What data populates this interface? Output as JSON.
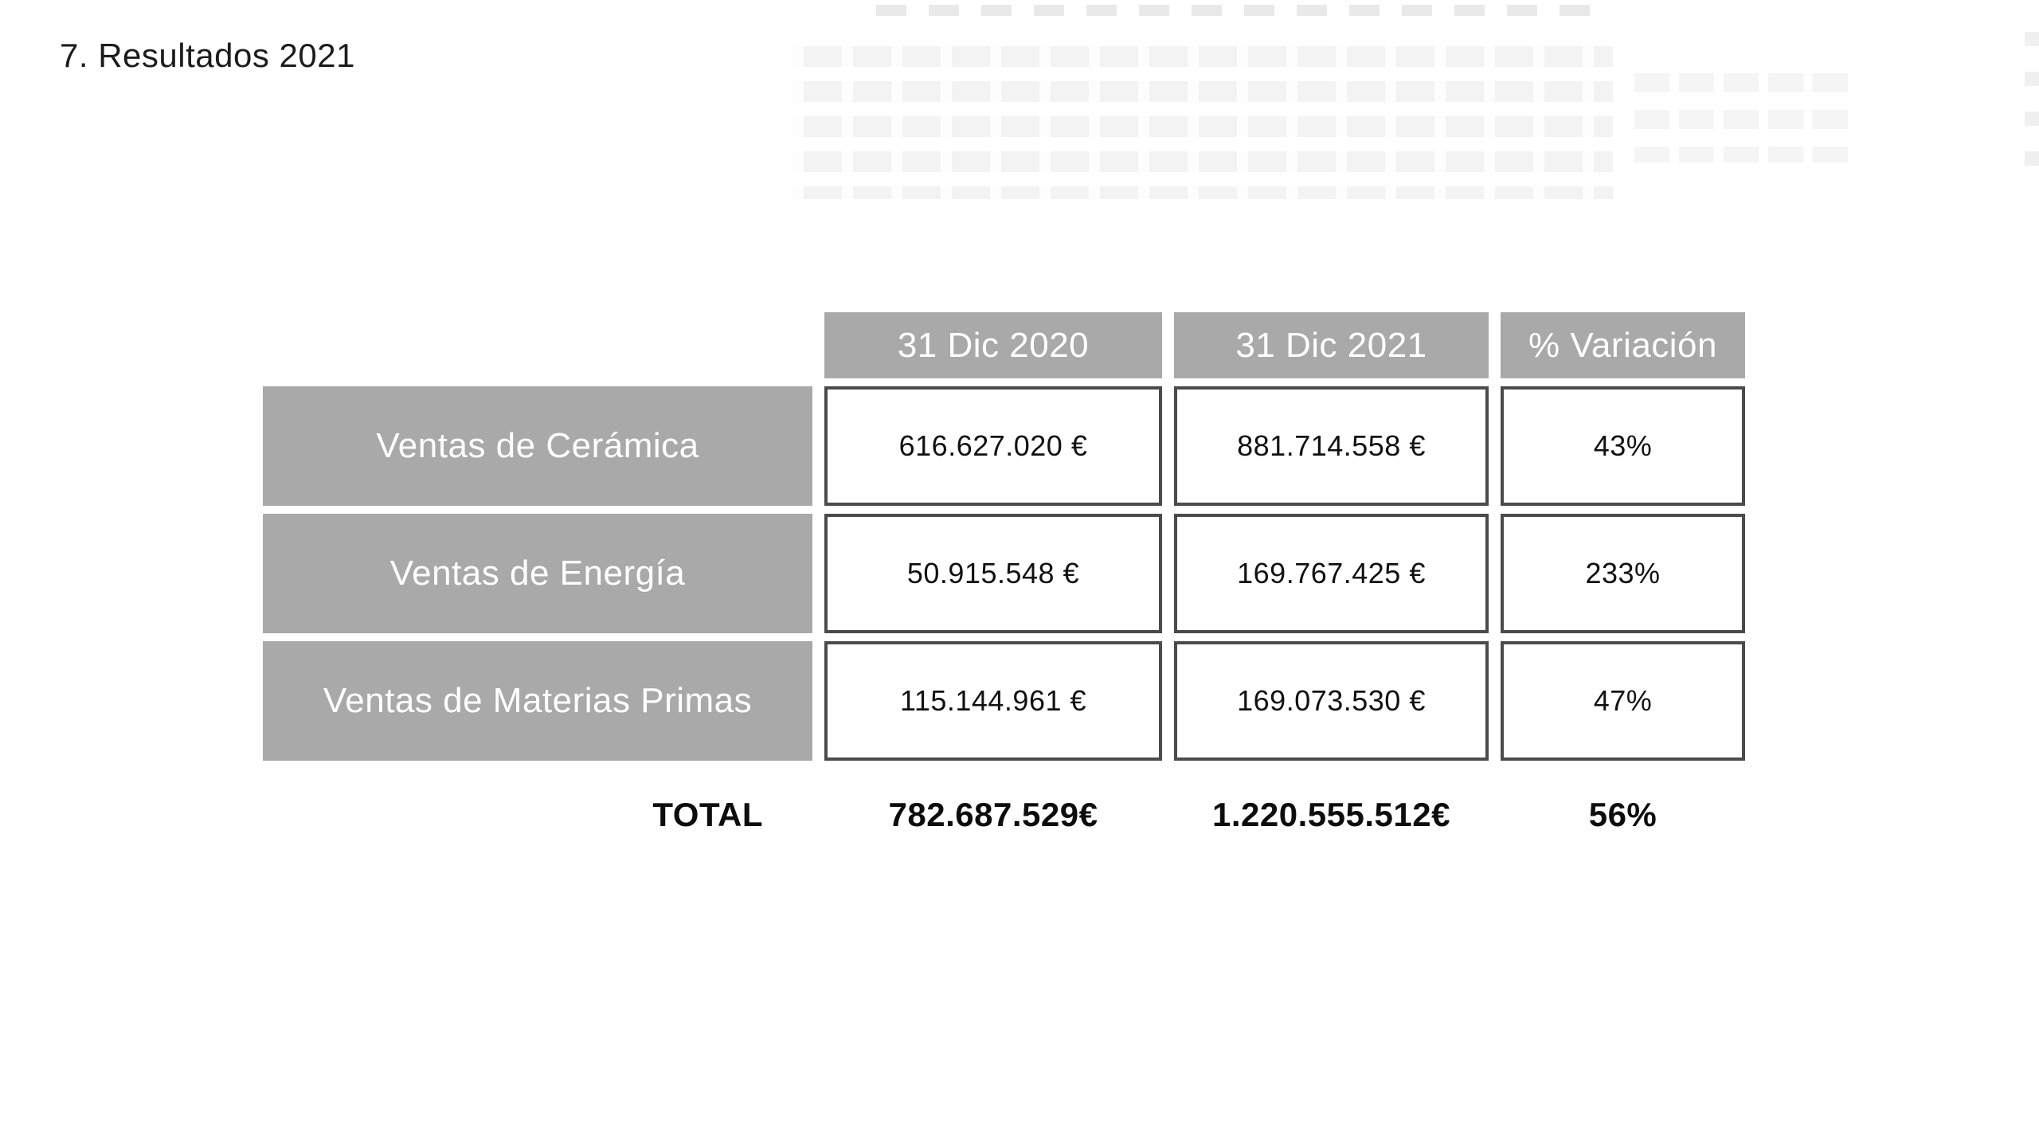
{
  "page": {
    "title": "7. Resultados 2021"
  },
  "table": {
    "column_headers": {
      "dic2020": "31 Dic 2020",
      "dic2021": "31 Dic 2021",
      "variation": "% Variación"
    },
    "rows": [
      {
        "label": "Ventas de Cerámica",
        "dic2020": "616.627.020 €",
        "dic2021": "881.714.558 €",
        "variation": "43%"
      },
      {
        "label": "Ventas de Energía",
        "dic2020": "50.915.548 €",
        "dic2021": "169.767.425 €",
        "variation": "233%"
      },
      {
        "label": "Ventas de Materias Primas",
        "dic2020": "115.144.961 €",
        "dic2021": "169.073.530 €",
        "variation": "47%"
      }
    ],
    "total": {
      "label": "TOTAL",
      "dic2020": "782.687.529€",
      "dic2021": "1.220.555.512€",
      "variation": "56%"
    }
  },
  "colors": {
    "cell_gray": "#a9a9a9",
    "cell_border": "#4b4b4b",
    "text_dark": "#111111",
    "text_white": "#ffffff",
    "background": "#ffffff"
  },
  "chart_data": {
    "type": "table",
    "title": "7. Resultados 2021",
    "categories": [
      "Ventas de Cerámica",
      "Ventas de Energía",
      "Ventas de Materias Primas",
      "TOTAL"
    ],
    "series": [
      {
        "name": "31 Dic 2020",
        "values": [
          616627020,
          50915548,
          115144961,
          782687529
        ]
      },
      {
        "name": "31 Dic 2021",
        "values": [
          881714558,
          169767425,
          169073530,
          1220555512
        ]
      },
      {
        "name": "% Variación",
        "values": [
          43,
          233,
          47,
          56
        ]
      }
    ],
    "unit": "EUR"
  }
}
